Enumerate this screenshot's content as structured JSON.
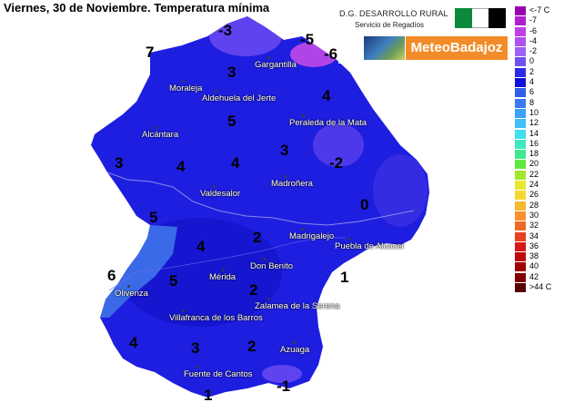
{
  "title": "Viernes, 30 de Noviembre.  Temperatura mínima",
  "header": {
    "org_line1": "D.G. DESARROLLO RURAL",
    "org_line2": "Servicio de Regadíos",
    "brand": "MeteoBadajoz",
    "flag_colors": [
      "#0a8a3a",
      "#ffffff",
      "#000000"
    ]
  },
  "legend": {
    "items": [
      {
        "label": "<-7 C",
        "color": "#9a00b0"
      },
      {
        "label": "-7",
        "color": "#b020d0"
      },
      {
        "label": "-6",
        "color": "#c040e8"
      },
      {
        "label": "-4",
        "color": "#b050f0"
      },
      {
        "label": "-2",
        "color": "#a060f8"
      },
      {
        "label": "0",
        "color": "#7050f0"
      },
      {
        "label": "2",
        "color": "#2a2ae8"
      },
      {
        "label": "4",
        "color": "#1010d8"
      },
      {
        "label": "6",
        "color": "#2f5fe8"
      },
      {
        "label": "8",
        "color": "#3a7af0"
      },
      {
        "label": "10",
        "color": "#3aa0f8"
      },
      {
        "label": "12",
        "color": "#40c0f8"
      },
      {
        "label": "14",
        "color": "#40e0f0"
      },
      {
        "label": "16",
        "color": "#40e8c0"
      },
      {
        "label": "18",
        "color": "#40e890"
      },
      {
        "label": "20",
        "color": "#60e840"
      },
      {
        "label": "22",
        "color": "#a0e830"
      },
      {
        "label": "24",
        "color": "#e8e830"
      },
      {
        "label": "26",
        "color": "#f8d830"
      },
      {
        "label": "28",
        "color": "#f8b830"
      },
      {
        "label": "30",
        "color": "#f89030"
      },
      {
        "label": "32",
        "color": "#f06828"
      },
      {
        "label": "34",
        "color": "#e84020"
      },
      {
        "label": "36",
        "color": "#d81818"
      },
      {
        "label": "38",
        "color": "#c00808"
      },
      {
        "label": "40",
        "color": "#a00000"
      },
      {
        "label": "42",
        "color": "#800000"
      },
      {
        "label": ">44 C",
        "color": "#580000"
      }
    ]
  },
  "towns": [
    {
      "name": "Gargantilla"
    },
    {
      "name": "Moraleja"
    },
    {
      "name": "Aldehuela del Jerte"
    },
    {
      "name": "Peraleda de la Mata"
    },
    {
      "name": "Alcántara"
    },
    {
      "name": "Madroñera"
    },
    {
      "name": "Valdesalor"
    },
    {
      "name": "Madrigalejo"
    },
    {
      "name": "Puebla de Alcocer"
    },
    {
      "name": "Don Benito"
    },
    {
      "name": "Mérida"
    },
    {
      "name": "Olivenza"
    },
    {
      "name": "Zalamea de la Serena"
    },
    {
      "name": "Villafranca de los Barros"
    },
    {
      "name": "Azuaga"
    },
    {
      "name": "Fuente de Cantos"
    }
  ],
  "values": [
    "-3",
    "-5",
    "7",
    "-6",
    "3",
    "4",
    "5",
    "3",
    "-2",
    "3",
    "4",
    "4",
    "0",
    "5",
    "4",
    "2",
    "6",
    "5",
    "1",
    "2",
    "4",
    "3",
    "2",
    "1",
    "-1"
  ],
  "map_colors": {
    "base": "#1e1ee0",
    "deep": "#0c0cc4",
    "cold": "#6a4af0",
    "very_cold": "#c048e8",
    "mild": "#3a6ae8",
    "border": "#8a8ae8"
  }
}
